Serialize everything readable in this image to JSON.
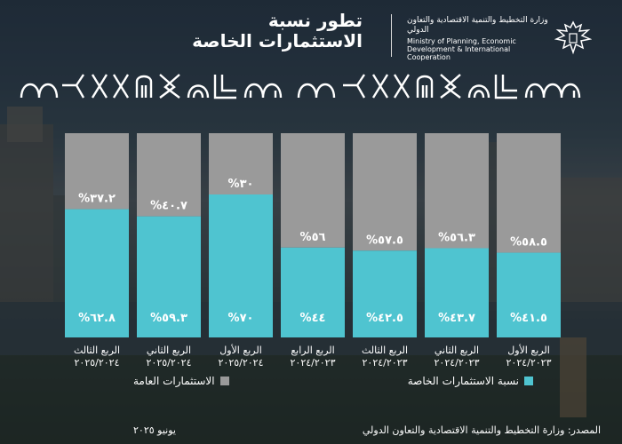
{
  "header": {
    "title_line1": "تطور نسبة",
    "title_line2": "الاستثمارات الخاصة",
    "ministry_ar": "وزارة التخطيط والتنمية الاقتصادية والتعاون الدولي",
    "ministry_en": "Ministry of Planning, Economic Development & International Cooperation"
  },
  "colors": {
    "private": "#4fc4d0",
    "public": "#9a9a9a",
    "text": "#ffffff"
  },
  "legend": {
    "private_label": "نسبة الاستثمارات الخاصة",
    "public_label": "الاستثمارات العامة"
  },
  "footer": {
    "source": "المصدر: وزارة التخطيط والتنمية الاقتصادية والتعاون الدولي",
    "date": "يونيو ٢٠٢٥"
  },
  "chart_data": {
    "type": "bar",
    "stacked": true,
    "title": "تطور نسبة الاستثمارات الخاصة",
    "ylim": [
      0,
      100
    ],
    "categories": [
      "الربع الثالث ٢٠٢٥/٢٠٢٤",
      "الربع الثاني ٢٠٢٥/٢٠٢٤",
      "الربع الأول ٢٠٢٥/٢٠٢٤",
      "الربع الرابع ٢٠٢٤/٢٠٢٣",
      "الربع الثالث ٢٠٢٤/٢٠٢٣",
      "الربع الثاني ٢٠٢٤/٢٠٢٣",
      "الربع الأول ٢٠٢٤/٢٠٢٣"
    ],
    "category_lines": [
      [
        "الربع الثالث",
        "٢٠٢٥/٢٠٢٤"
      ],
      [
        "الربع الثاني",
        "٢٠٢٥/٢٠٢٤"
      ],
      [
        "الربع الأول",
        "٢٠٢٥/٢٠٢٤"
      ],
      [
        "الربع الرابع",
        "٢٠٢٤/٢٠٢٣"
      ],
      [
        "الربع الثالث",
        "٢٠٢٤/٢٠٢٣"
      ],
      [
        "الربع الثاني",
        "٢٠٢٤/٢٠٢٣"
      ],
      [
        "الربع الأول",
        "٢٠٢٤/٢٠٢٣"
      ]
    ],
    "series": [
      {
        "name": "الاستثمارات العامة",
        "values": [
          62.8,
          59.3,
          70,
          44,
          42.5,
          43.7,
          41.5
        ],
        "labels": [
          "%٦٢.٨",
          "%٥٩.٣",
          "%٧٠",
          "%٤٤",
          "%٤٢.٥",
          "%٤٣.٧",
          "%٤١.٥"
        ]
      },
      {
        "name": "نسبة الاستثمارات الخاصة",
        "values": [
          37.2,
          40.7,
          30,
          56,
          57.5,
          56.3,
          58.5
        ],
        "labels": [
          "%٣٧.٢",
          "%٤٠.٧",
          "%٣٠",
          "%٥٦",
          "%٥٧.٥",
          "%٥٦.٣",
          "%٥٨.٥"
        ]
      }
    ]
  }
}
